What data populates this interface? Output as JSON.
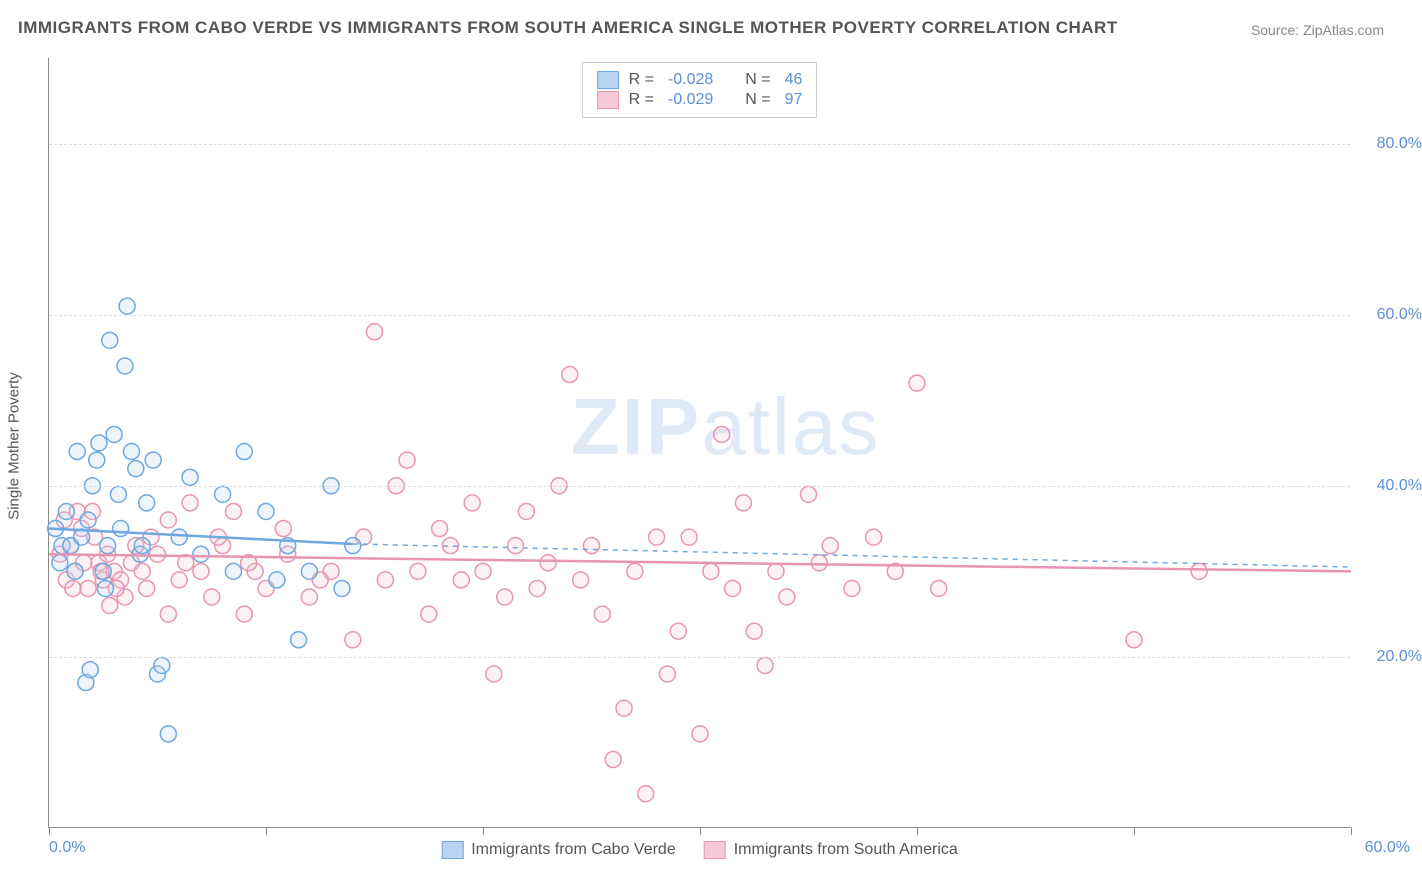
{
  "title": "IMMIGRANTS FROM CABO VERDE VS IMMIGRANTS FROM SOUTH AMERICA SINGLE MOTHER POVERTY CORRELATION CHART",
  "source": "Source: ZipAtlas.com",
  "watermark_zip": "ZIP",
  "watermark_atlas": "atlas",
  "y_axis_label": "Single Mother Poverty",
  "chart": {
    "type": "scatter",
    "background_color": "#ffffff",
    "grid_color": "#dddddd",
    "xlim": [
      0,
      60
    ],
    "ylim": [
      0,
      90
    ],
    "x_ticks": [
      0,
      10,
      20,
      30,
      40,
      50,
      60
    ],
    "x_tick_labels": {
      "0": "0.0%",
      "60": "60.0%"
    },
    "y_ticks": [
      20,
      40,
      60,
      80
    ],
    "y_tick_labels": [
      "20.0%",
      "40.0%",
      "60.0%",
      "80.0%"
    ],
    "marker_radius": 8,
    "marker_stroke_width": 1.5,
    "marker_fill_opacity": 0.25,
    "line_width": 2.5,
    "dash_pattern": "5,5",
    "text_color": "#555555",
    "tick_label_color": "#5b8fd6",
    "tick_label_fontsize": 16,
    "title_fontsize": 17,
    "axis_label_fontsize": 15
  },
  "series": [
    {
      "name": "Immigrants from Cabo Verde",
      "color": "#6ea8e0",
      "fill": "#b8d4f0",
      "R": "-0.028",
      "N": "46",
      "trend_solid": {
        "x1": 0,
        "y1": 35,
        "x2": 14,
        "y2": 33.2
      },
      "trend_dash": {
        "x1": 14,
        "y1": 33.2,
        "x2": 60,
        "y2": 30.5
      },
      "points": [
        [
          0.3,
          35
        ],
        [
          0.5,
          31
        ],
        [
          0.6,
          33
        ],
        [
          0.8,
          37
        ],
        [
          1.0,
          33
        ],
        [
          1.2,
          30
        ],
        [
          1.3,
          44
        ],
        [
          1.5,
          34
        ],
        [
          1.8,
          36
        ],
        [
          2.0,
          40
        ],
        [
          2.2,
          43
        ],
        [
          2.3,
          45
        ],
        [
          2.5,
          30
        ],
        [
          2.6,
          28
        ],
        [
          2.8,
          57
        ],
        [
          3.0,
          46
        ],
        [
          3.2,
          39
        ],
        [
          3.5,
          54
        ],
        [
          3.6,
          61
        ],
        [
          3.8,
          44
        ],
        [
          4.0,
          42
        ],
        [
          4.2,
          32
        ],
        [
          4.5,
          38
        ],
        [
          4.8,
          43
        ],
        [
          5.0,
          18
        ],
        [
          5.2,
          19
        ],
        [
          1.7,
          17
        ],
        [
          1.9,
          18.5
        ],
        [
          5.5,
          11
        ],
        [
          6.0,
          34
        ],
        [
          6.5,
          41
        ],
        [
          7.0,
          32
        ],
        [
          8.0,
          39
        ],
        [
          8.5,
          30
        ],
        [
          9.0,
          44
        ],
        [
          10.0,
          37
        ],
        [
          10.5,
          29
        ],
        [
          11.0,
          33
        ],
        [
          11.5,
          22
        ],
        [
          12.0,
          30
        ],
        [
          13.0,
          40
        ],
        [
          13.5,
          28
        ],
        [
          14.0,
          33
        ],
        [
          2.7,
          33
        ],
        [
          3.3,
          35
        ],
        [
          4.3,
          33
        ]
      ]
    },
    {
      "name": "Immigrants from South America",
      "color": "#e895b0",
      "fill": "#f5c9d6",
      "R": "-0.029",
      "N": "97",
      "trend_solid": {
        "x1": 0,
        "y1": 32,
        "x2": 60,
        "y2": 30
      },
      "trend_dash": null,
      "points": [
        [
          0.5,
          32
        ],
        [
          0.8,
          29
        ],
        [
          1.0,
          33
        ],
        [
          1.2,
          30
        ],
        [
          1.5,
          35
        ],
        [
          1.8,
          28
        ],
        [
          2.0,
          37
        ],
        [
          2.3,
          31
        ],
        [
          2.5,
          29
        ],
        [
          2.8,
          26
        ],
        [
          3.0,
          30
        ],
        [
          3.5,
          27
        ],
        [
          4.0,
          33
        ],
        [
          4.5,
          28
        ],
        [
          5.0,
          32
        ],
        [
          5.5,
          25
        ],
        [
          6.0,
          29
        ],
        [
          6.5,
          38
        ],
        [
          7.0,
          30
        ],
        [
          7.5,
          27
        ],
        [
          8.0,
          33
        ],
        [
          8.5,
          37
        ],
        [
          9.0,
          25
        ],
        [
          9.5,
          30
        ],
        [
          10.0,
          28
        ],
        [
          11.0,
          32
        ],
        [
          12.0,
          27
        ],
        [
          13.0,
          30
        ],
        [
          14.0,
          22
        ],
        [
          14.5,
          34
        ],
        [
          15.0,
          58
        ],
        [
          15.5,
          29
        ],
        [
          16.0,
          40
        ],
        [
          16.5,
          43
        ],
        [
          17.0,
          30
        ],
        [
          17.5,
          25
        ],
        [
          18.0,
          35
        ],
        [
          18.5,
          33
        ],
        [
          19.0,
          29
        ],
        [
          19.5,
          38
        ],
        [
          20.0,
          30
        ],
        [
          20.5,
          18
        ],
        [
          21.0,
          27
        ],
        [
          21.5,
          33
        ],
        [
          22.0,
          37
        ],
        [
          22.5,
          28
        ],
        [
          23.0,
          31
        ],
        [
          23.5,
          40
        ],
        [
          24.0,
          53
        ],
        [
          24.5,
          29
        ],
        [
          25.0,
          33
        ],
        [
          25.5,
          25
        ],
        [
          26.0,
          8
        ],
        [
          26.5,
          14
        ],
        [
          27.0,
          30
        ],
        [
          27.5,
          4
        ],
        [
          28.0,
          34
        ],
        [
          28.5,
          18
        ],
        [
          29.0,
          23
        ],
        [
          29.5,
          34
        ],
        [
          30.0,
          11
        ],
        [
          30.5,
          30
        ],
        [
          31.0,
          46
        ],
        [
          31.5,
          28
        ],
        [
          32.0,
          38
        ],
        [
          32.5,
          23
        ],
        [
          33.0,
          19
        ],
        [
          33.5,
          30
        ],
        [
          34.0,
          27
        ],
        [
          35.0,
          39
        ],
        [
          35.5,
          31
        ],
        [
          36.0,
          33
        ],
        [
          37.0,
          28
        ],
        [
          38.0,
          34
        ],
        [
          39.0,
          30
        ],
        [
          40.0,
          52
        ],
        [
          41.0,
          28
        ],
        [
          5.5,
          36
        ],
        [
          6.3,
          31
        ],
        [
          7.8,
          34
        ],
        [
          9.2,
          31
        ],
        [
          10.8,
          35
        ],
        [
          12.5,
          29
        ],
        [
          0.7,
          36
        ],
        [
          1.3,
          37
        ],
        [
          1.6,
          31
        ],
        [
          2.1,
          34
        ],
        [
          2.7,
          32
        ],
        [
          3.3,
          29
        ],
        [
          3.8,
          31
        ],
        [
          4.3,
          30
        ],
        [
          4.7,
          34
        ],
        [
          50.0,
          22
        ],
        [
          53.0,
          30
        ],
        [
          1.1,
          28
        ],
        [
          2.4,
          30
        ],
        [
          3.1,
          28
        ]
      ]
    }
  ],
  "legend_labels": {
    "R": "R =",
    "N": "N ="
  }
}
